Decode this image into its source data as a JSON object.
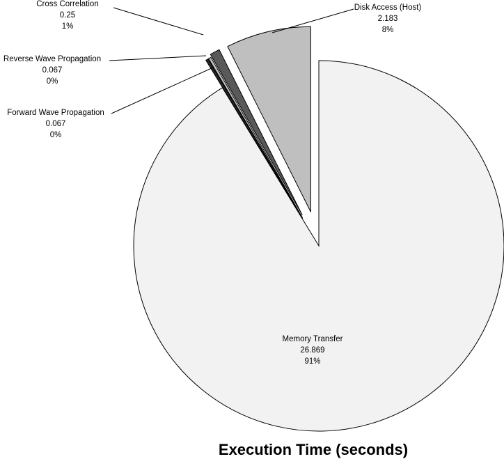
{
  "chart_data": {
    "type": "pie",
    "title": "Execution Time (seconds)",
    "categories": [
      "Memory Transfer",
      "Forward Wave Propagation",
      "Reverse Wave Propagation",
      "Cross Correlation",
      "Disk Access (Host)"
    ],
    "values": [
      26.869,
      0.067,
      0.067,
      0.25,
      2.183
    ],
    "percent_labels": [
      "91%",
      "0%",
      "0%",
      "1%",
      "8%"
    ],
    "value_labels": [
      "26.869",
      "0.067",
      "0.067",
      "0.25",
      "2.183"
    ],
    "colors": [
      "#f2f2f2",
      "#262626",
      "#bfbfbf",
      "#595959",
      "#bfbfbf"
    ],
    "exploded": [
      false,
      true,
      true,
      true,
      true
    ],
    "legend": "none",
    "data_labels": "category, value, percentage"
  }
}
